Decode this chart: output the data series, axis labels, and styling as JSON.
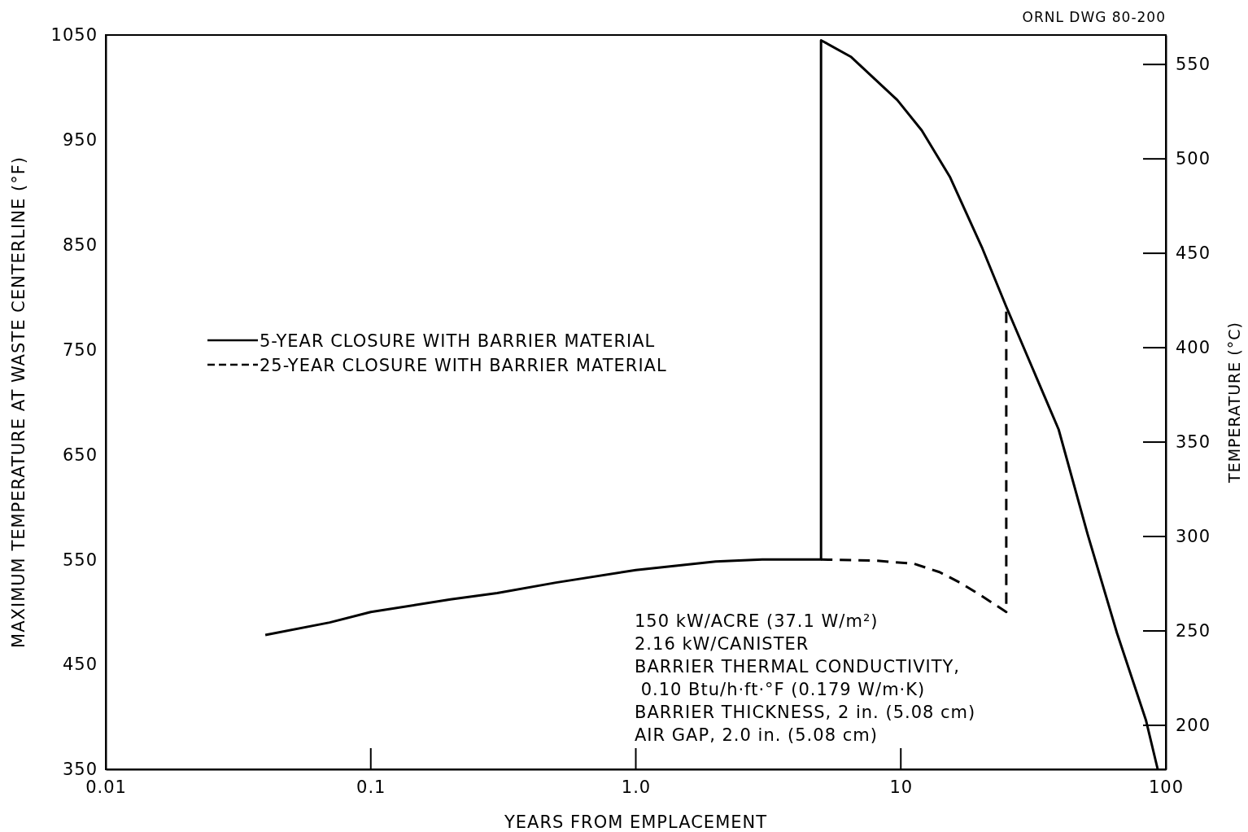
{
  "chart_data": {
    "type": "line",
    "xlabel": "YEARS FROM EMPLACEMENT",
    "ylabel": "MAXIMUM TEMPERATURE AT WASTE CENTERLINE (°F)",
    "y2label": "TEMPERATURE (°C)",
    "log": "x",
    "xlim": [
      0.01,
      100
    ],
    "xticks": [
      0.01,
      0.1,
      {
        "value": 1,
        "label": "1.0"
      },
      10,
      100
    ],
    "ylim": [
      350,
      1050
    ],
    "yticks": [
      350,
      450,
      550,
      650,
      750,
      850,
      950,
      1050
    ],
    "y2lim": [
      176.7,
      565.6
    ],
    "y2ticks": [
      200,
      250,
      300,
      350,
      400,
      450,
      500,
      550
    ],
    "legend": "left",
    "grid": false,
    "series": [
      {
        "name": "5-YEAR CLOSURE WITH BARRIER MATERIAL",
        "color": "#000000",
        "line_style": "solid",
        "x": [
          0.04,
          0.07,
          0.1,
          0.2,
          0.3,
          0.5,
          1,
          2,
          3,
          5,
          5,
          6.5,
          9.7,
          12,
          15.3,
          20.2,
          25,
          39.4,
          50.7,
          65.4,
          84.1,
          93.2
        ],
        "values": [
          478,
          490,
          500,
          512,
          518,
          528,
          540,
          548,
          550,
          550,
          1045,
          1029,
          988,
          959,
          915,
          848,
          791,
          674,
          574,
          480,
          397,
          350
        ]
      },
      {
        "name": "25-YEAR CLOSURE WITH BARRIER MATERIAL",
        "color": "#000000",
        "line_style": "dashed",
        "x": [
          5,
          8,
          11.2,
          14,
          16.7,
          20,
          25,
          25
        ],
        "values": [
          550,
          549,
          546,
          538,
          528,
          516,
          500,
          790
        ]
      }
    ],
    "annotations": [
      "ORNL DWG 80-200",
      "150 kW/ACRE (37.1 W/m²)",
      "2.16 kW/CANISTER",
      "BARRIER THERMAL CONDUCTIVITY,",
      " 0.10 Btu/h·ft·°F (0.179 W/m·K)",
      "BARRIER THICKNESS, 2 in. (5.08 cm)",
      "AIR GAP, 2.0 in. (5.08 cm)"
    ]
  }
}
